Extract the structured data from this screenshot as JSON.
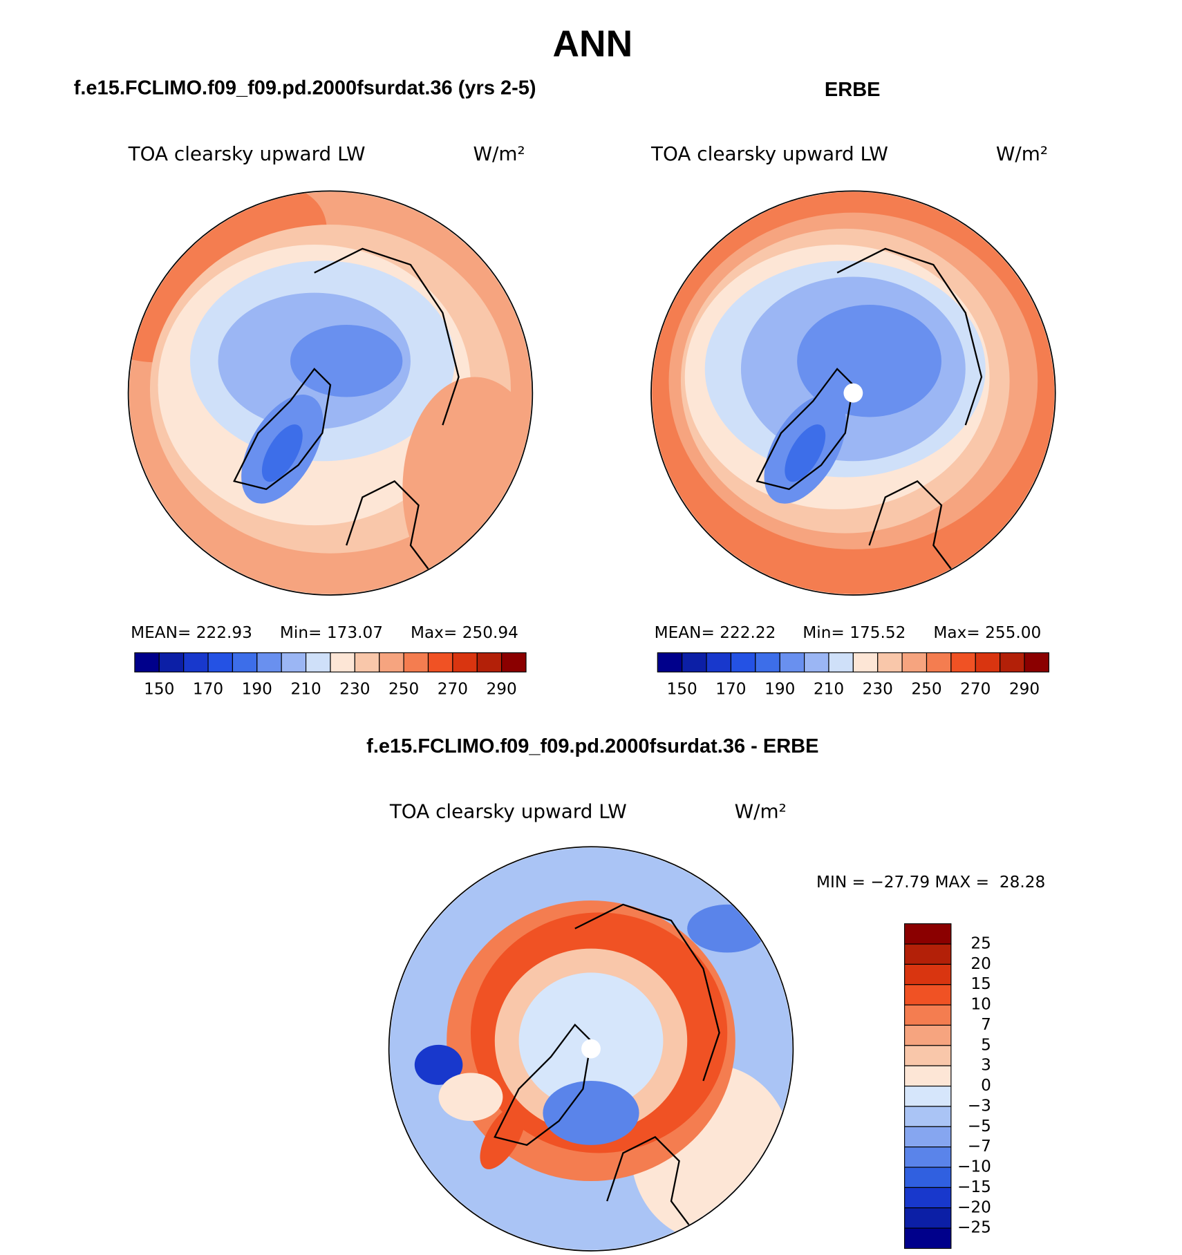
{
  "title": "ANN",
  "abs_colorbar": {
    "colors": [
      "#00008b",
      "#0c1fa6",
      "#1838cc",
      "#2452e4",
      "#3d6ee9",
      "#6990ef",
      "#9bb6f4",
      "#cfe0f9",
      "#fde6d6",
      "#f9c7aa",
      "#f6a47f",
      "#f47d50",
      "#f05224",
      "#d93510",
      "#b32008",
      "#8b0000"
    ],
    "tick_labels": [
      150,
      170,
      190,
      210,
      230,
      250,
      270,
      290
    ]
  },
  "panels": [
    {
      "case": "f.e15.FCLIMO.f09_f09.pd.2000fsurdat.36 (yrs 2-5)",
      "variable": "TOA clearsky upward LW",
      "units": "W/m²",
      "stats": [
        "MEAN= 222.93",
        "Min= 173.07",
        "Max= 250.94"
      ]
    },
    {
      "case": "ERBE",
      "variable": "TOA clearsky upward LW",
      "units": "W/m²",
      "stats": [
        "MEAN= 222.22",
        "Min= 175.52",
        "Max= 255.00"
      ]
    }
  ],
  "difference": {
    "case": "f.e15.FCLIMO.f09_f09.pd.2000fsurdat.36 - ERBE",
    "variable": "TOA clearsky upward LW",
    "units": "W/m²",
    "stats": "MIN = −27.79 MAX =  28.28",
    "colorbar": {
      "colors": [
        "#8b0000",
        "#b32008",
        "#d93510",
        "#f05224",
        "#f47d50",
        "#f6a47f",
        "#f9c7aa",
        "#fde6d6",
        "#d6e6fb",
        "#aac4f5",
        "#86a6f0",
        "#5a84ea",
        "#3060e0",
        "#1838cc",
        "#0c1fa6",
        "#00008b"
      ],
      "tick_labels": [
        "25",
        "20",
        "15",
        "10",
        "7",
        "5",
        "3",
        "0",
        "−3",
        "−5",
        "−7",
        "−10",
        "−15",
        "−20",
        "−25"
      ]
    }
  }
}
